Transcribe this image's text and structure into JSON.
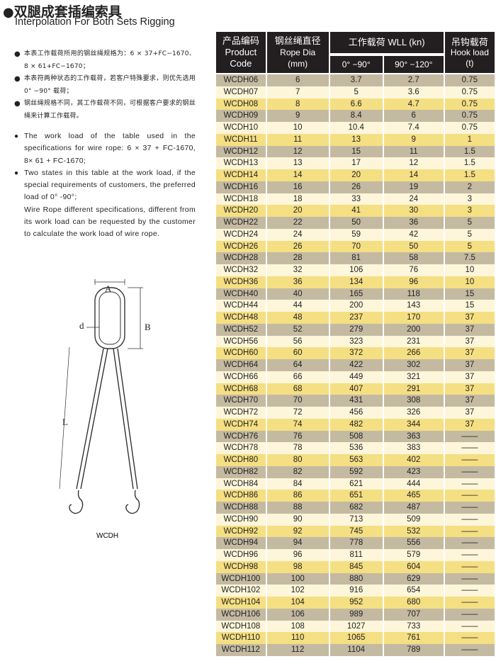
{
  "title": "双腿成套插编索具",
  "subtitle": "Interpolation For Both Sets Rigging",
  "bullet_icon": "filled-circle",
  "notes_cn": [
    "本表工作载荷所用的钢丝绳规格为：6 × 37+FC−1670、8 × 61+FC−1670；",
    "本表符两种状态的工作载荷，若客户特殊要求，则优先选用0° −90° 载荷；",
    "钢丝绳规格不同，其工作载荷不同，可根据客户要求的钢丝绳来计算工作载荷。"
  ],
  "notes_en": [
    "The work load of the table used in the specifications for wire rope: 6 × 37 + FC-1670, 8× 61 + FC-1670;",
    "Two states in this table at the work load, if the special requirements of customers, the preferred load of 0°  -90°;"
  ],
  "notes_en_extra": "Wire Rope different specifications, different from its work load can be requested by the customer to calculate the work load of wire rope.",
  "diagram": {
    "label_a": "A",
    "label_b": "B",
    "label_d": "d",
    "label_l": "L",
    "caption": "WCDH"
  },
  "table": {
    "headers": {
      "code_cn": "产品编码",
      "code_en1": "Product",
      "code_en2": "Code",
      "dia_cn": "钢丝绳直径",
      "dia_en1": "Rope Dia",
      "dia_en2": "(mm)",
      "wll": "工作载荷 WLL (kn)",
      "wll_a": "0° −90°",
      "wll_b": "90° −120°",
      "hook_cn": "吊钩载荷",
      "hook_en1": "Hook load",
      "hook_en2": "(t)"
    },
    "colors": {
      "header": "#231f20",
      "row_gray": "#c4baa2",
      "row_cream": "#fdf6da",
      "row_yellow": "#f5df83"
    },
    "rows": [
      [
        "WCDH06",
        "6",
        "3.7",
        "2.7",
        "0.75"
      ],
      [
        "WCDH07",
        "7",
        "5",
        "3.6",
        "0.75"
      ],
      [
        "WCDH08",
        "8",
        "6.6",
        "4.7",
        "0.75"
      ],
      [
        "WCDH09",
        "9",
        "8.4",
        "6",
        "0.75"
      ],
      [
        "WCDH10",
        "10",
        "10.4",
        "7.4",
        "0.75"
      ],
      [
        "WCDH11",
        "11",
        "13",
        "9",
        "1"
      ],
      [
        "WCDH12",
        "12",
        "15",
        "11",
        "1.5"
      ],
      [
        "WCDH13",
        "13",
        "17",
        "12",
        "1.5"
      ],
      [
        "WCDH14",
        "14",
        "20",
        "14",
        "1.5"
      ],
      [
        "WCDH16",
        "16",
        "26",
        "19",
        "2"
      ],
      [
        "WCDH18",
        "18",
        "33",
        "24",
        "3"
      ],
      [
        "WCDH20",
        "20",
        "41",
        "30",
        "3"
      ],
      [
        "WCDH22",
        "22",
        "50",
        "36",
        "5"
      ],
      [
        "WCDH24",
        "24",
        "59",
        "42",
        "5"
      ],
      [
        "WCDH26",
        "26",
        "70",
        "50",
        "5"
      ],
      [
        "WCDH28",
        "28",
        "81",
        "58",
        "7.5"
      ],
      [
        "WCDH32",
        "32",
        "106",
        "76",
        "10"
      ],
      [
        "WCDH36",
        "36",
        "134",
        "96",
        "10"
      ],
      [
        "WCDH40",
        "40",
        "165",
        "118",
        "15"
      ],
      [
        "WCDH44",
        "44",
        "200",
        "143",
        "15"
      ],
      [
        "WCDH48",
        "48",
        "237",
        "170",
        "37"
      ],
      [
        "WCDH52",
        "52",
        "279",
        "200",
        "37"
      ],
      [
        "WCDH56",
        "56",
        "323",
        "231",
        "37"
      ],
      [
        "WCDH60",
        "60",
        "372",
        "266",
        "37"
      ],
      [
        "WCDH64",
        "64",
        "422",
        "302",
        "37"
      ],
      [
        "WCDH66",
        "66",
        "449",
        "321",
        "37"
      ],
      [
        "WCDH68",
        "68",
        "407",
        "291",
        "37"
      ],
      [
        "WCDH70",
        "70",
        "431",
        "308",
        "37"
      ],
      [
        "WCDH72",
        "72",
        "456",
        "326",
        "37"
      ],
      [
        "WCDH74",
        "74",
        "482",
        "344",
        "37"
      ],
      [
        "WCDH76",
        "76",
        "508",
        "363",
        "——"
      ],
      [
        "WCDH78",
        "78",
        "536",
        "383",
        "——"
      ],
      [
        "WCDH80",
        "80",
        "563",
        "402",
        "——"
      ],
      [
        "WCDH82",
        "82",
        "592",
        "423",
        "——"
      ],
      [
        "WCDH84",
        "84",
        "621",
        "444",
        "——"
      ],
      [
        "WCDH86",
        "86",
        "651",
        "465",
        "——"
      ],
      [
        "WCDH88",
        "88",
        "682",
        "487",
        "——"
      ],
      [
        "WCDH90",
        "90",
        "713",
        "509",
        "——"
      ],
      [
        "WCDH92",
        "92",
        "745",
        "532",
        "——"
      ],
      [
        "WCDH94",
        "94",
        "778",
        "556",
        "——"
      ],
      [
        "WCDH96",
        "96",
        "811",
        "579",
        "——"
      ],
      [
        "WCDH98",
        "98",
        "845",
        "604",
        "——"
      ],
      [
        "WCDH100",
        "100",
        "880",
        "629",
        "——"
      ],
      [
        "WCDH102",
        "102",
        "916",
        "654",
        "——"
      ],
      [
        "WCDH104",
        "104",
        "952",
        "680",
        "——"
      ],
      [
        "WCDH106",
        "106",
        "989",
        "707",
        "——"
      ],
      [
        "WCDH108",
        "108",
        "1027",
        "733",
        "——"
      ],
      [
        "WCDH110",
        "110",
        "1065",
        "761",
        "——"
      ],
      [
        "WCDH112",
        "112",
        "1104",
        "789",
        "——"
      ]
    ]
  }
}
